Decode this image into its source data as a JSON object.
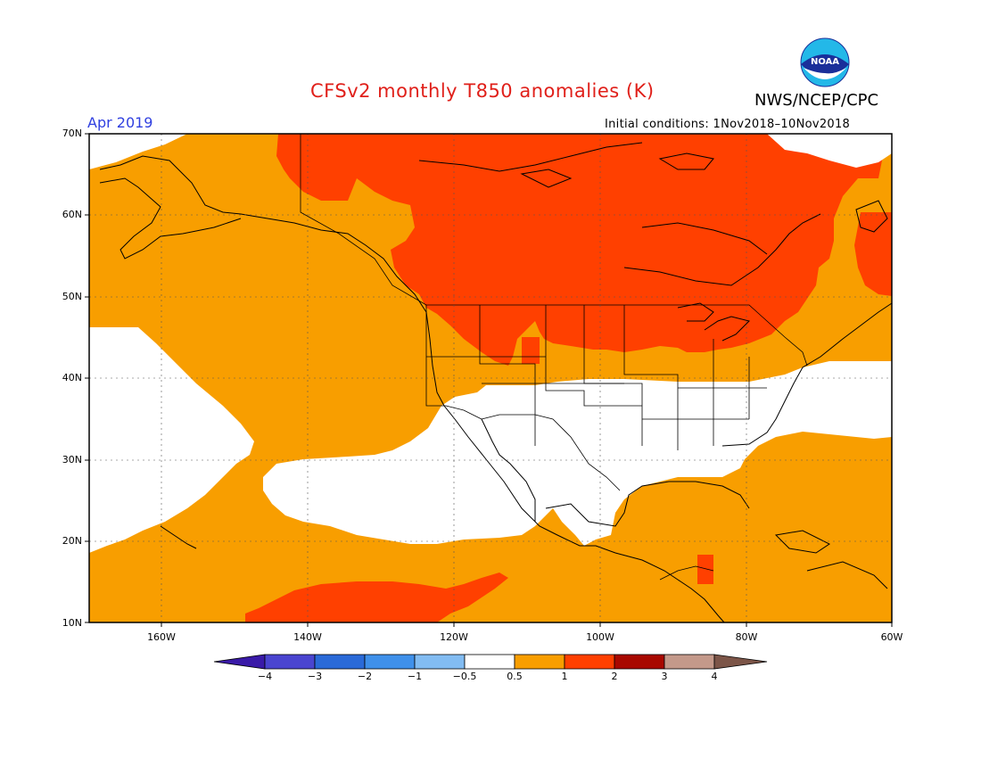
{
  "title": "CFSv2 monthly T850 anomalies (K)",
  "organization": "NWS/NCEP/CPC",
  "logo_text": "NOAA",
  "forecast_month": "Apr 2019",
  "initial_conditions": "Initial conditions: 1Nov2018–10Nov2018",
  "lat_labels": [
    "70N",
    "60N",
    "50N",
    "40N",
    "30N",
    "20N",
    "10N"
  ],
  "lon_labels": [
    "160W",
    "140W",
    "120W",
    "100W",
    "80W",
    "60W"
  ],
  "colorbar": {
    "tick_labels": [
      "−4",
      "−3",
      "−2",
      "−1",
      "−0.5",
      "0.5",
      "1",
      "2",
      "3",
      "4"
    ],
    "colors": [
      "#3a1aa8",
      "#4a45d0",
      "#2a6ad8",
      "#3f90ea",
      "#82bcf2",
      "#ffffff",
      "#f89e00",
      "#ff4000",
      "#a80800",
      "#c4998a",
      "#7c5548"
    ]
  },
  "colors": {
    "anomaly_0_5_to_1": "#f89e00",
    "anomaly_1_to_2": "#ff4000",
    "neutral": "#ffffff"
  }
}
